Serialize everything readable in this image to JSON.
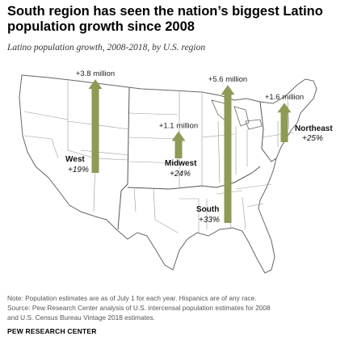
{
  "header": {
    "title_line1": "South region has seen the nation’s biggest Latino",
    "title_line2": "population growth since 2008",
    "subtitle": "Latino population growth, 2008-2018, by U.S. region"
  },
  "chart_data": {
    "type": "map-arrows",
    "title": "South region has seen the nation’s biggest Latino population growth since 2008",
    "subtitle": "Latino population growth, 2008-2018, by U.S. region",
    "unit": "million",
    "regions": [
      {
        "name": "West",
        "growth_label": "+3.8 million",
        "growth_millions": 3.8,
        "percent_label": "+19%",
        "percent": 19
      },
      {
        "name": "Midwest",
        "growth_label": "+1.1 million",
        "growth_millions": 1.1,
        "percent_label": "+24%",
        "percent": 24
      },
      {
        "name": "South",
        "growth_label": "+5.6 million",
        "growth_millions": 5.6,
        "percent_label": "+33%",
        "percent": 33
      },
      {
        "name": "Northeast",
        "growth_label": "+1.6 million",
        "growth_millions": 1.6,
        "percent_label": "+25%",
        "percent": 25
      }
    ],
    "colors": {
      "arrow": "#8d9b55",
      "state_border": "#888888",
      "land": "#ffffff",
      "region_border": "#555555"
    }
  },
  "footer": {
    "note_line1": "Note: Population estimates are as of July 1 for each year. Hispanics are of any race.",
    "note_line2": "Source: Pew Research Center analysis of U.S. intercensal population estimates for 2008",
    "note_line3": "and U.S. Census Bureau Vintage 2018 estimates.",
    "brand": "PEW RESEARCH CENTER"
  }
}
